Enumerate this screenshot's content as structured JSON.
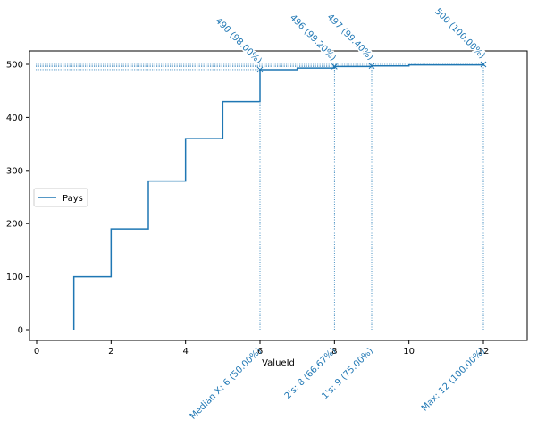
{
  "chart_data": {
    "type": "line",
    "step": true,
    "xlabel": "ValueId",
    "ylabel": "",
    "xlim": [
      -0.2,
      13.2
    ],
    "ylim": [
      -20,
      525
    ],
    "xticks": [
      0,
      2,
      4,
      6,
      8,
      10,
      12
    ],
    "yticks": [
      0,
      100,
      200,
      300,
      400,
      500
    ],
    "grid": false,
    "legend_placement": "center-left",
    "series": [
      {
        "name": "Pays",
        "color": "#1f77b4",
        "x": [
          1,
          2,
          3,
          4,
          5,
          6,
          7,
          8,
          9,
          10,
          12
        ],
        "y": [
          100,
          190,
          280,
          360,
          430,
          490,
          493,
          496,
          497,
          499,
          500
        ]
      }
    ],
    "markers": [
      {
        "x": 6,
        "y": 490,
        "top_label": "490 (98.00%)",
        "bottom_label": "Median X: 6 (50.00%)"
      },
      {
        "x": 8,
        "y": 496,
        "top_label": "496 (99.20%)",
        "bottom_label": "2's: 8 (66.67%)"
      },
      {
        "x": 9,
        "y": 497,
        "top_label": "497 (99.40%)",
        "bottom_label": "1's: 9 (75.00%)"
      },
      {
        "x": 12,
        "y": 500,
        "top_label": "500 (100.00%)",
        "bottom_label": "Max: 12 (100.00%)"
      }
    ]
  }
}
